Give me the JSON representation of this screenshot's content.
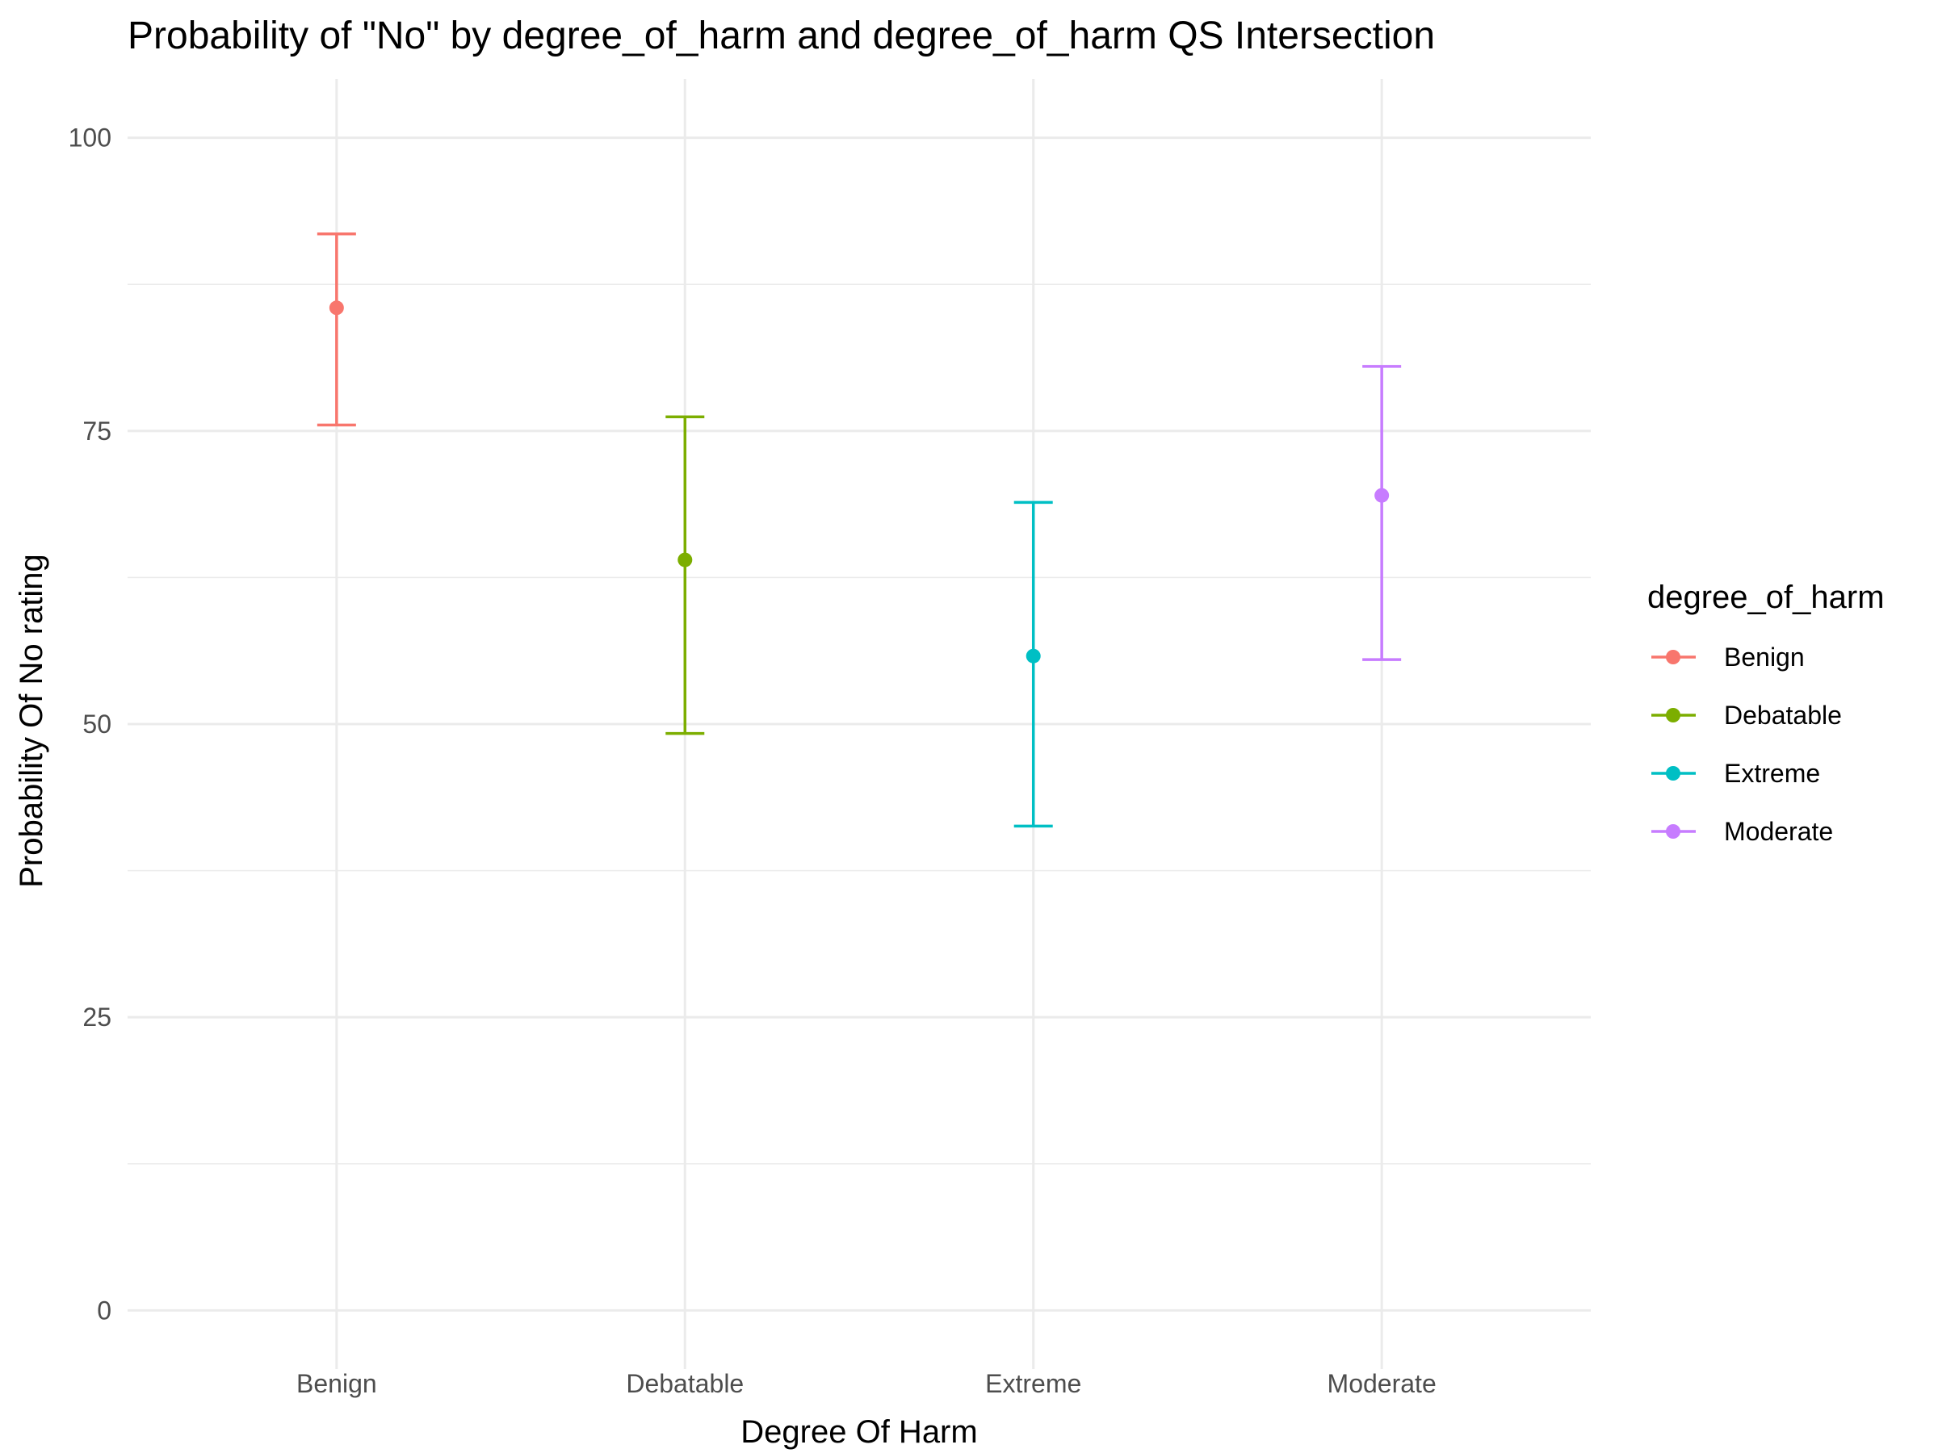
{
  "chart_data": {
    "type": "scatter",
    "title": "Probability of \"No\" by degree_of_harm and  degree_of_harm  QS Intersection",
    "xlabel": "Degree Of Harm",
    "ylabel": "Probability Of No rating",
    "categories": [
      "Benign",
      "Debatable",
      "Extreme",
      "Moderate"
    ],
    "ylim": [
      -5,
      105
    ],
    "yticks": [
      0,
      25,
      50,
      75,
      100
    ],
    "grid": true,
    "legend": {
      "title": "degree_of_harm",
      "position": "right",
      "entries": [
        "Benign",
        "Debatable",
        "Extreme",
        "Moderate"
      ]
    },
    "series": [
      {
        "name": "Benign",
        "category": "Benign",
        "value": 85.5,
        "lower": 75.5,
        "upper": 91.8,
        "color": "#F8766D"
      },
      {
        "name": "Debatable",
        "category": "Debatable",
        "value": 64.0,
        "lower": 49.2,
        "upper": 76.2,
        "color": "#7CAE00"
      },
      {
        "name": "Extreme",
        "category": "Extreme",
        "value": 55.8,
        "lower": 41.3,
        "upper": 68.9,
        "color": "#00BFC4"
      },
      {
        "name": "Moderate",
        "category": "Moderate",
        "value": 69.5,
        "lower": 55.5,
        "upper": 80.5,
        "color": "#C77CFF"
      }
    ]
  }
}
